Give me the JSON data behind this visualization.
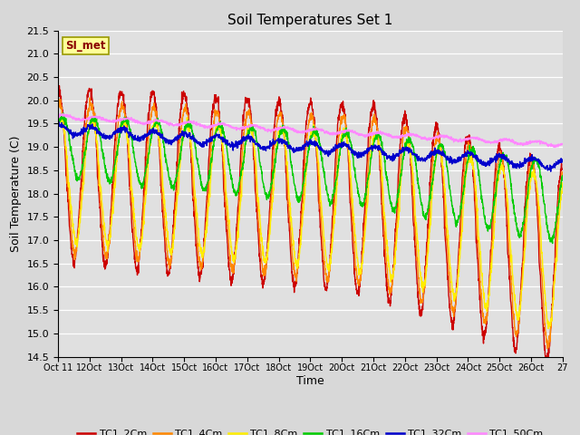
{
  "title": "Soil Temperatures Set 1",
  "xlabel": "Time",
  "ylabel": "Soil Temperature (C)",
  "ylim": [
    14.5,
    21.5
  ],
  "yticks": [
    14.5,
    15.0,
    15.5,
    16.0,
    16.5,
    17.0,
    17.5,
    18.0,
    18.5,
    19.0,
    19.5,
    20.0,
    20.5,
    21.0,
    21.5
  ],
  "colors": {
    "TC1_2Cm": "#cc0000",
    "TC1_4Cm": "#ff8800",
    "TC1_8Cm": "#ffee00",
    "TC1_16Cm": "#00cc00",
    "TC1_32Cm": "#0000cc",
    "TC1_50Cm": "#ff88ff"
  },
  "legend_label": "SI_met",
  "n_days": 16,
  "n_points_per_day": 144,
  "start_day": 11
}
